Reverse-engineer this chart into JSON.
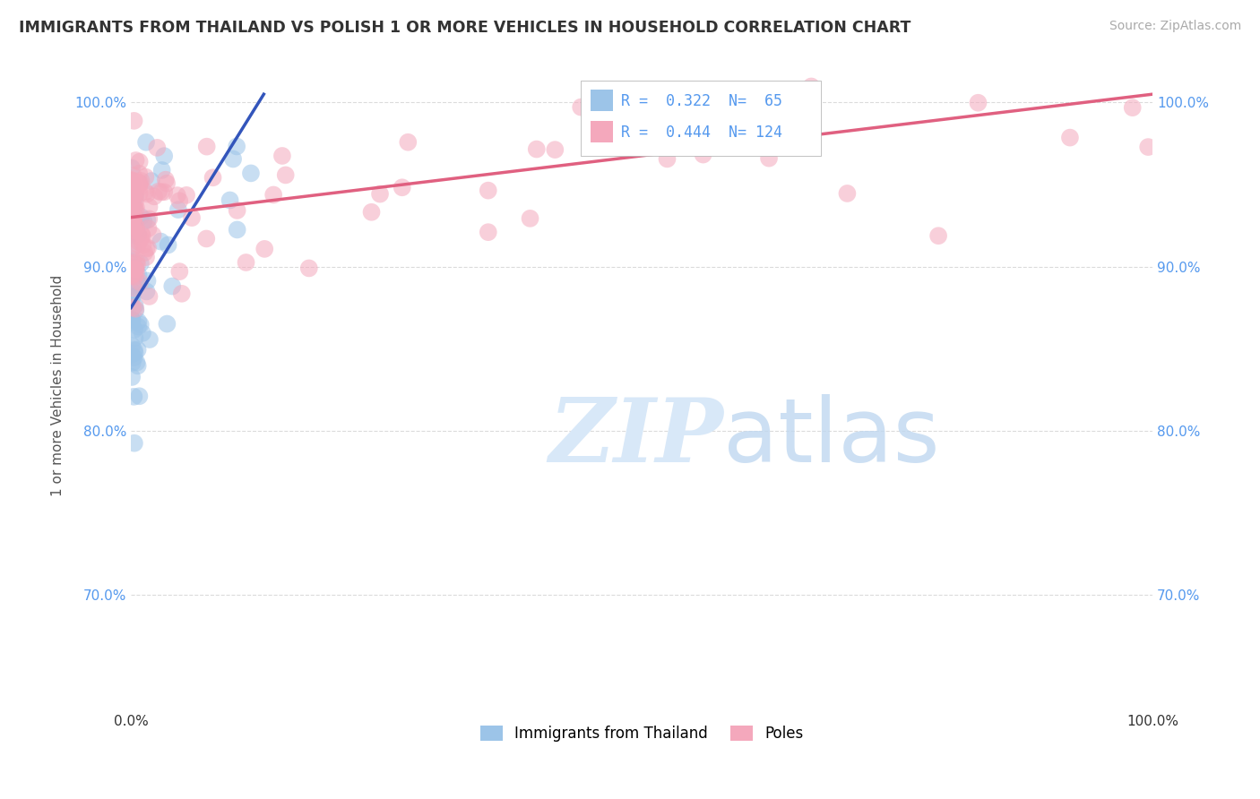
{
  "title": "IMMIGRANTS FROM THAILAND VS POLISH 1 OR MORE VEHICLES IN HOUSEHOLD CORRELATION CHART",
  "source": "Source: ZipAtlas.com",
  "ylabel": "1 or more Vehicles in Household",
  "legend_labels": [
    "Immigrants from Thailand",
    "Poles"
  ],
  "thailand_color": "#9CC4E8",
  "poles_color": "#F4A8BC",
  "thailand_line_color": "#3355BB",
  "poles_line_color": "#E06080",
  "R_thailand": 0.322,
  "N_thailand": 65,
  "R_poles": 0.444,
  "N_poles": 124,
  "background_color": "#ffffff",
  "grid_color": "#cccccc",
  "watermark_color": "#D8E8F8",
  "title_color": "#333333",
  "tick_color": "#5599EE",
  "ylabel_color": "#555555",
  "xlim": [
    0.0,
    1.0
  ],
  "ylim": [
    0.63,
    1.025
  ],
  "yticks": [
    0.7,
    0.8,
    0.9,
    1.0
  ],
  "ytick_labels": [
    "70.0%",
    "80.0%",
    "90.0%",
    "100.0%"
  ],
  "xticks": [
    0.0,
    1.0
  ],
  "xtick_labels": [
    "0.0%",
    "100.0%"
  ],
  "thai_trend_x0": 0.0,
  "thai_trend_y0": 0.875,
  "thai_trend_x1": 0.13,
  "thai_trend_y1": 1.005,
  "poles_trend_x0": 0.0,
  "poles_trend_y0": 0.93,
  "poles_trend_x1": 1.0,
  "poles_trend_y1": 1.005
}
